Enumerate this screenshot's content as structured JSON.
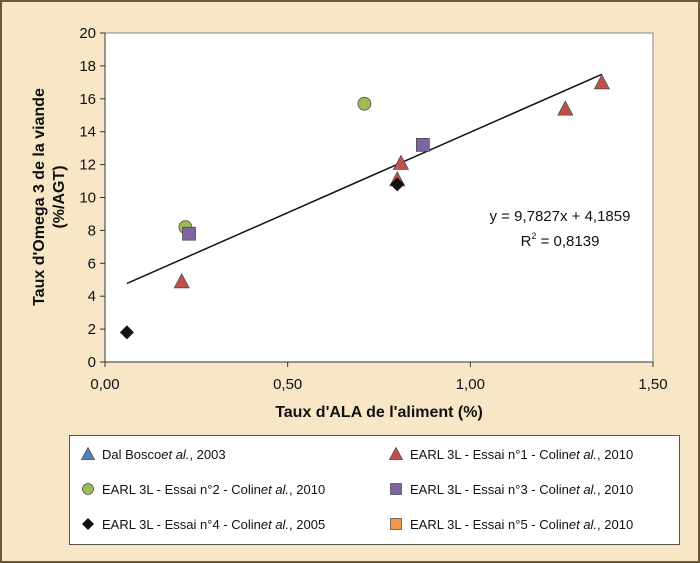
{
  "chart_data": {
    "type": "scatter",
    "xlabel": "Taux d'ALA de l'aliment (%)",
    "ylabel_lines": [
      "Taux d'Omega 3 de la viande",
      "(%/AGT)"
    ],
    "xlim": [
      0,
      1.5
    ],
    "ylim": [
      0,
      20
    ],
    "x_ticks": [
      0,
      0.5,
      1,
      1.5
    ],
    "x_tick_labels": [
      "0,00",
      "0,50",
      "1,00",
      "1,50"
    ],
    "y_ticks": [
      0,
      2,
      4,
      6,
      8,
      10,
      12,
      14,
      16,
      18,
      20
    ],
    "y_tick_labels": [
      "0",
      "2",
      "4",
      "6",
      "8",
      "10",
      "12",
      "14",
      "16",
      "18",
      "20"
    ],
    "grid": false,
    "legend_position": "bottom",
    "series": [
      {
        "name": "Dal Bosco et al., 2003",
        "legend_parts": [
          "Dal Bosco ",
          "et al.",
          ", 2003"
        ],
        "marker": "triangle",
        "color": "#4f81bd",
        "points": []
      },
      {
        "name": "EARL 3L - Essai n°1 - Colin et al., 2010",
        "legend_parts": [
          "EARL 3L - Essai n°1 - Colin ",
          "et al.",
          ", 2010"
        ],
        "marker": "triangle",
        "color": "#c0504d",
        "points": [
          [
            0.21,
            4.9
          ],
          [
            0.8,
            11.1
          ],
          [
            0.81,
            12.1
          ],
          [
            1.26,
            15.4
          ],
          [
            1.36,
            17.0
          ]
        ]
      },
      {
        "name": "EARL 3L - Essai n°2 - Colin et al., 2010",
        "legend_parts": [
          "EARL 3L - Essai n°2 - Colin ",
          "et al.",
          ", 2010"
        ],
        "marker": "circle",
        "color": "#9bbb59",
        "points": [
          [
            0.22,
            8.2
          ],
          [
            0.71,
            15.7
          ]
        ]
      },
      {
        "name": "EARL 3L - Essai n°3 - Colin et al., 2010",
        "legend_parts": [
          "EARL 3L - Essai n°3 - Colin ",
          "et al.",
          ", 2010"
        ],
        "marker": "square",
        "color": "#8064a2",
        "points": [
          [
            0.23,
            7.8
          ],
          [
            0.87,
            13.2
          ]
        ]
      },
      {
        "name": "EARL 3L - Essai n°4 - Colin et al., 2005",
        "legend_parts": [
          "EARL 3L - Essai n°4 - Colin ",
          "et al.",
          ", 2005"
        ],
        "marker": "diamond",
        "color": "#111111",
        "points": [
          [
            0.06,
            1.8
          ],
          [
            0.8,
            10.8
          ]
        ]
      },
      {
        "name": "EARL 3L - Essai n°5 - Colin et al., 2010",
        "legend_parts": [
          "EARL 3L - Essai n°5 - Colin ",
          "et al.",
          ", 2010"
        ],
        "marker": "square",
        "color": "#f79646",
        "points": []
      }
    ],
    "trendline": {
      "slope": 9.7827,
      "intercept": 4.1859,
      "x_range": [
        0.06,
        1.36
      ],
      "equation": "y = 9,7827x + 4,1859",
      "r2_label": "R",
      "r2_exponent": "2",
      "r2_value": " = 0,8139"
    }
  },
  "colors": {
    "frame_background": "#f7e7c7",
    "frame_border": "#6b5a3a",
    "plot_background": "#ffffff"
  }
}
